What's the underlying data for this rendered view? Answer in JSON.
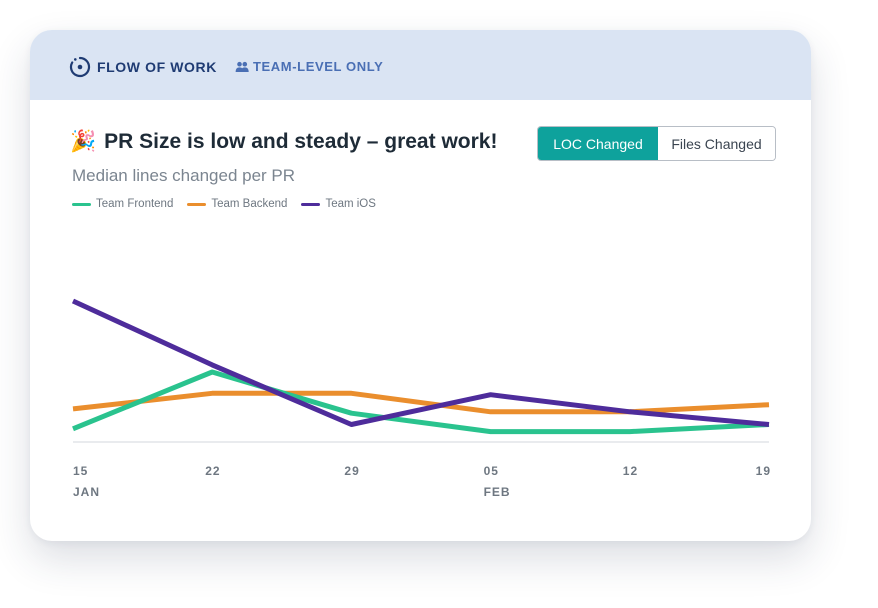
{
  "header": {
    "brand_text": "FLOW OF WORK",
    "team_badge_text": "TEAM-LEVEL ONLY",
    "brand_icon": "flow-icon",
    "team_icon": "people-icon"
  },
  "title": {
    "emoji": "🎉",
    "text": "PR Size is low and steady – great work!"
  },
  "subtitle": "Median lines changed per PR",
  "toggle": {
    "active_label": "LOC Changed",
    "inactive_label": "Files Changed",
    "active_color": "#0ea29c"
  },
  "chart_data": {
    "type": "line",
    "title": "",
    "xlabel": "",
    "ylabel": "",
    "x_ticks": [
      {
        "day": "15",
        "month": "JAN"
      },
      {
        "day": "22",
        "month": ""
      },
      {
        "day": "29",
        "month": ""
      },
      {
        "day": "05",
        "month": "FEB"
      },
      {
        "day": "12",
        "month": ""
      },
      {
        "day": "19",
        "month": ""
      }
    ],
    "grid": false,
    "legend_position": "top-left",
    "ylim": [
      0,
      100
    ],
    "series": [
      {
        "name": "Team Frontend",
        "color": "#2ac38e",
        "values": [
          10,
          50,
          21,
          8,
          8,
          13
        ]
      },
      {
        "name": "Team Backend",
        "color": "#ea8e2d",
        "values": [
          24,
          35,
          35,
          22,
          22,
          27
        ]
      },
      {
        "name": "Team iOS",
        "color": "#4e2c9b",
        "values": [
          100,
          55,
          13,
          34,
          22,
          13
        ]
      }
    ]
  }
}
